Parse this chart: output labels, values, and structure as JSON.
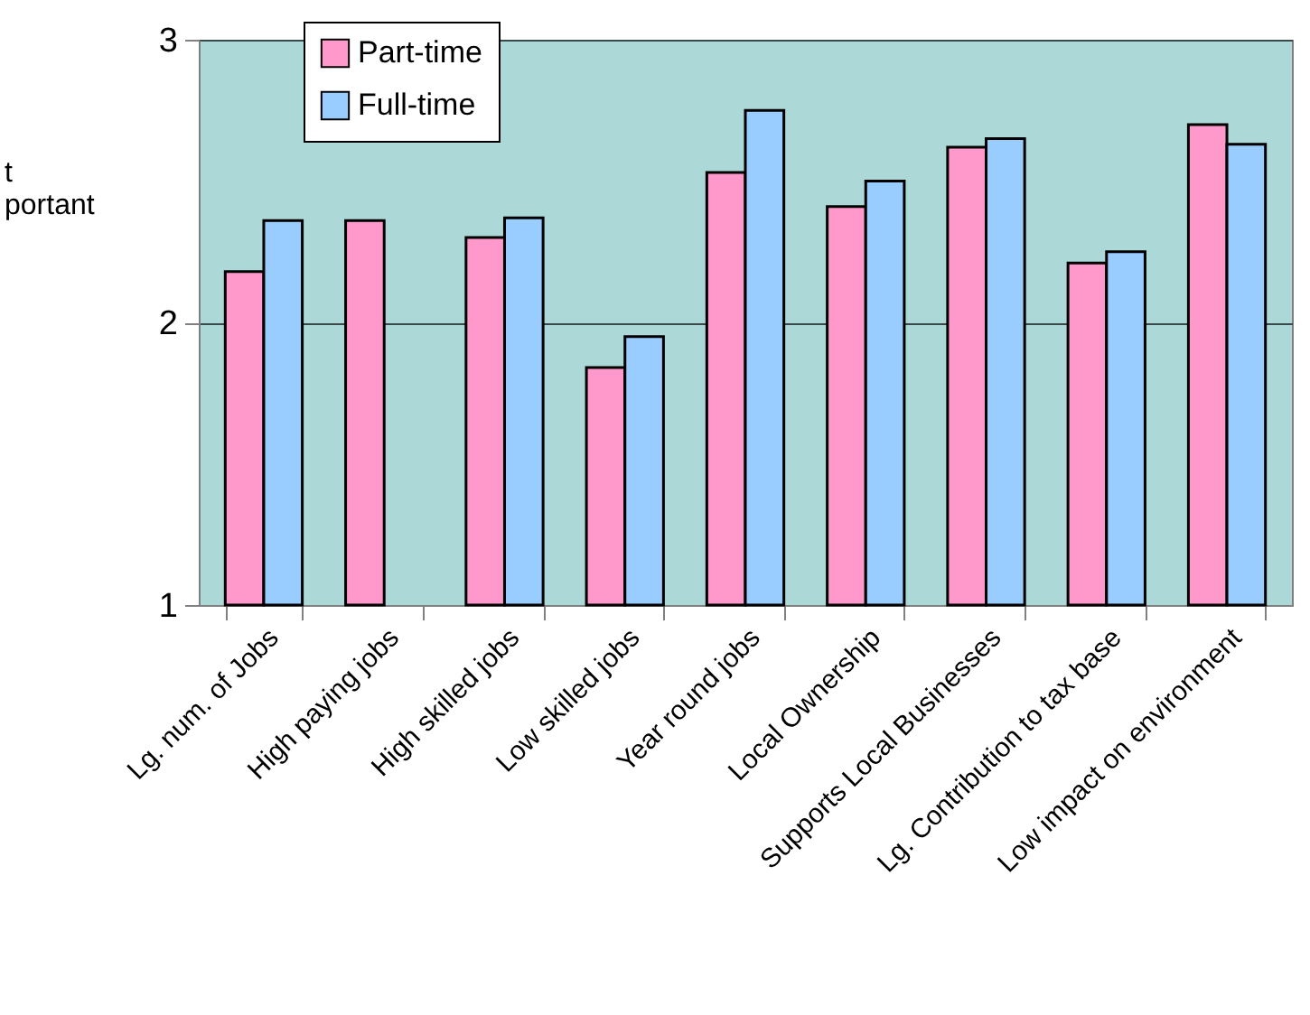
{
  "chart_data": {
    "type": "bar",
    "ylabel": "t\nportant",
    "categories": [
      "Lg. num. of Jobs",
      "High paying jobs",
      "High skilled jobs",
      "Low skilled jobs",
      "Year round jobs",
      "Local Ownership",
      "Supports Local Businesses",
      "Lg. Contribution to tax base",
      "Low impact on environment"
    ],
    "series": [
      {
        "name": "Part-time",
        "color": "#ff99cc",
        "values": [
          2.18,
          2.36,
          2.3,
          1.84,
          2.53,
          2.41,
          2.62,
          2.21,
          2.7
        ]
      },
      {
        "name": "Full-time",
        "color": "#99ccff",
        "values": [
          2.36,
          null,
          2.37,
          1.95,
          2.75,
          2.5,
          2.65,
          2.25,
          2.63
        ]
      }
    ],
    "ylim": [
      1,
      3
    ],
    "yticks": [
      1,
      2,
      3
    ],
    "grid": "y",
    "legend": "top left"
  }
}
